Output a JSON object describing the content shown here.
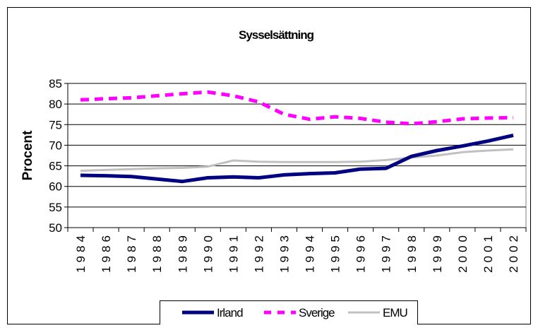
{
  "chart_data": {
    "type": "line",
    "title": "Sysselsättning",
    "xlabel": "",
    "ylabel": "Procent",
    "ylim": [
      50,
      85
    ],
    "yticks": [
      "50",
      "55",
      "60",
      "65",
      "70",
      "75",
      "80",
      "85"
    ],
    "categories": [
      "1984",
      "1986",
      "1987",
      "1988",
      "1989",
      "1990",
      "1991",
      "1992",
      "1993",
      "1994",
      "1995",
      "1996",
      "1997",
      "1998",
      "1999",
      "2000",
      "2001",
      "2002"
    ],
    "tick_labels": [
      "1984",
      "1986",
      "1987",
      "1988",
      "1989",
      "1990",
      "1991",
      "1992",
      "1993",
      "1994",
      "1995",
      "1996",
      "1997",
      "1998",
      "1999",
      "2000",
      "2001",
      "2002"
    ],
    "grid": true,
    "legend_position": "bottom",
    "series": [
      {
        "name": "Irland",
        "color": "#000080",
        "style": "solid-thick",
        "values": [
          62.7,
          62.6,
          62.4,
          61.8,
          61.2,
          62.1,
          62.3,
          62.1,
          62.8,
          63.1,
          63.3,
          64.2,
          64.4,
          67.3,
          68.7,
          69.8,
          71.0,
          72.4
        ]
      },
      {
        "name": "Sverige",
        "color": "#ff00ff",
        "style": "dashed",
        "values": [
          81.0,
          81.3,
          81.5,
          82.0,
          82.5,
          82.9,
          82.0,
          80.5,
          77.5,
          76.3,
          76.9,
          76.5,
          75.6,
          75.2,
          75.7,
          76.4,
          76.6,
          76.7
        ]
      },
      {
        "name": "EMU",
        "color": "#c0c0c0",
        "style": "solid",
        "values": [
          63.8,
          64.0,
          64.2,
          64.4,
          64.5,
          64.8,
          66.3,
          66.0,
          65.9,
          65.9,
          65.9,
          66.0,
          66.4,
          67.0,
          67.5,
          68.3,
          68.7,
          69.0
        ]
      }
    ]
  }
}
